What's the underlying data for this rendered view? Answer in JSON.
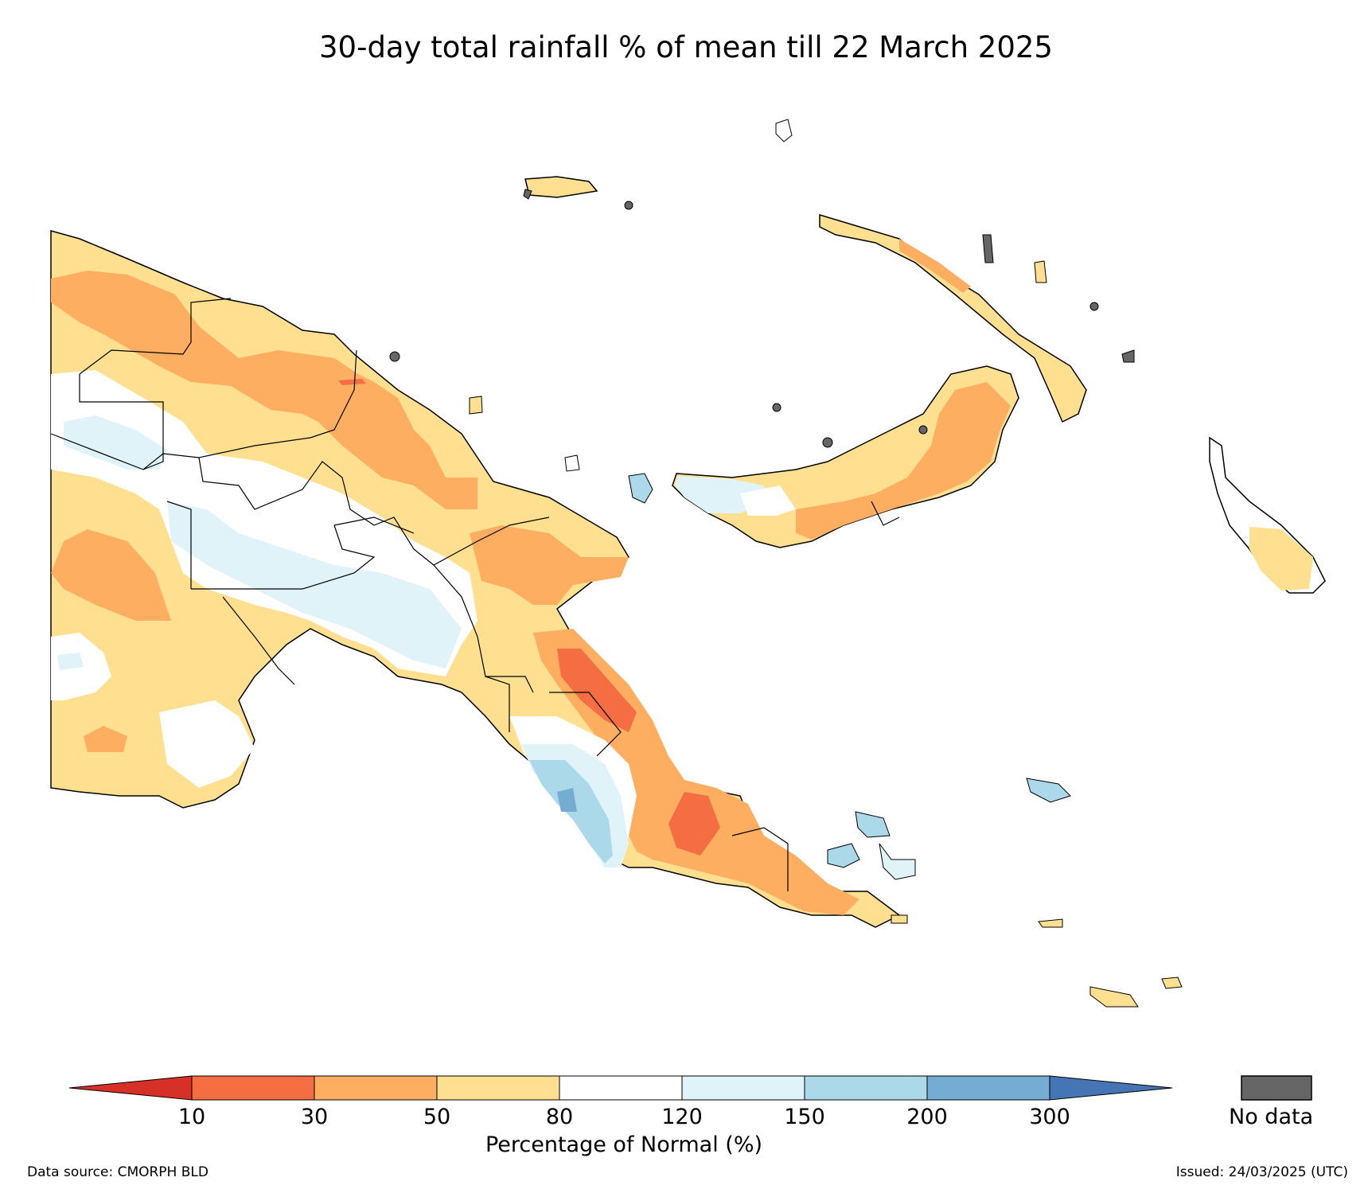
{
  "title": "30-day total rainfall % of mean till 22 March 2025",
  "legend": {
    "label": "Percentage of Normal (%)",
    "ticks": [
      "10",
      "30",
      "50",
      "80",
      "120",
      "150",
      "200",
      "300"
    ],
    "bins": [
      {
        "range": "<10",
        "color": "#d73027"
      },
      {
        "range": "10-30",
        "color": "#f46d43"
      },
      {
        "range": "30-50",
        "color": "#fdae61"
      },
      {
        "range": "50-80",
        "color": "#fee090"
      },
      {
        "range": "80-120",
        "color": "#ffffff"
      },
      {
        "range": "120-150",
        "color": "#e0f3f8"
      },
      {
        "range": "150-200",
        "color": "#abd9e9"
      },
      {
        "range": "200-300",
        "color": "#74add1"
      },
      {
        "range": ">300",
        "color": "#4575b4"
      }
    ],
    "nodata_label": "No data",
    "nodata_color": "#666666"
  },
  "footer": {
    "source": "Data source: CMORPH BLD",
    "issued": "Issued: 24/03/2025 (UTC)"
  }
}
